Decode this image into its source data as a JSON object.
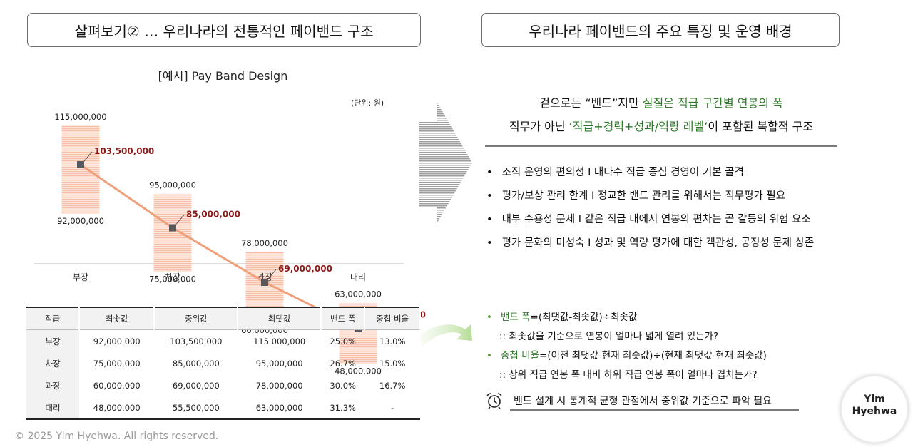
{
  "header": {
    "left_title": "살펴보기② … 우리나라의 전통적인 페이밴드 구조",
    "right_title": "우리나라 페이밴드의 주요 특징 및 운영 배경"
  },
  "chart_data": {
    "type": "bar",
    "title": "[예시]  Pay Band Design",
    "unit": "(단위: 원)",
    "categories": [
      "부장",
      "차장",
      "과장",
      "대리"
    ],
    "series": [
      {
        "values_min": [
          92000000,
          75000000,
          60000000,
          48000000
        ]
      },
      {
        "values_mid": [
          103500000,
          85000000,
          69000000,
          55500000
        ]
      },
      {
        "values_max": [
          115000000,
          95000000,
          78000000,
          63000000
        ]
      }
    ],
    "min_labels": [
      "92,000,000",
      "75,000,000",
      "60,000,000",
      "48,000,000"
    ],
    "mid_labels": [
      "103,500,000",
      "85,000,000",
      "69,000,000",
      "55,500,000"
    ],
    "max_labels": [
      "115,000,000",
      "95,000,000",
      "78,000,000",
      "63,000,000"
    ],
    "band_color": "#f6c9b4",
    "line_color": "#f0a07a",
    "marker_color": "#595959",
    "mid_label_color": "#8b1a1a"
  },
  "table": {
    "headers": [
      "직급",
      "최솟값",
      "중위값",
      "최댓값",
      "밴드 폭",
      "중첩 비율"
    ],
    "rows": [
      [
        "부장",
        "92,000,000",
        "103,500,000",
        "115,000,000",
        "25.0%",
        "13.0%"
      ],
      [
        "차장",
        "75,000,000",
        "85,000,000",
        "95,000,000",
        "26.7%",
        "15.0%"
      ],
      [
        "과장",
        "60,000,000",
        "69,000,000",
        "78,000,000",
        "30.0%",
        "16.7%"
      ],
      [
        "대리",
        "48,000,000",
        "55,500,000",
        "63,000,000",
        "31.3%",
        "-"
      ]
    ]
  },
  "highlight": {
    "line1_a": "겉으로는 “밴드”지만 ",
    "line1_b": "실질은 직급 구간별 연봉의 폭",
    "line2_a": "직무가 아닌 ",
    "line2_b": "‘직급+경력+성과/역량 레벨’",
    "line2_c": "이 포함된 복합적 구조"
  },
  "bullets": [
    "조직 운영의 편의성 I 대다수 직급 중심 경영이 기본 골격",
    "평가/보상 관리 한계 I 정교한 밴드 관리를 위해서는 직무평가 필요",
    "내부 수용성 문제 I 같은 직급 내에서 연봉의 편차는 곧 갈등의 위험 요소",
    "평가 문화의 미성숙 I 성과 및 역량 평가에 대한 객관성, 공정성 문제 상존"
  ],
  "formulas": {
    "band_label": "밴드 폭",
    "band_formula": "=(최댓값-최솟값)÷최솟값",
    "band_desc": ":: 최솟값을 기준으로 연봉이 얼마나 넓게 열려 있는가?",
    "overlap_label": "중첩 비율",
    "overlap_formula": "=(이전 최댓값-현재 최솟값)÷(현재 최댓값-현재 최솟값)",
    "overlap_desc": ":: 상위 직급 연봉 폭 대비 하위 직급 연봉 폭이 얼마나 겹치는가?"
  },
  "note": "밴드 설계 시 통계적 균형 관점에서 중위값 기준으로 파악 필요",
  "logo": {
    "line1": "Yim",
    "line2": "Hyehwa"
  },
  "footer": {
    "copyright": "©  2025 Yim Hyehwa. All rights reserved."
  }
}
